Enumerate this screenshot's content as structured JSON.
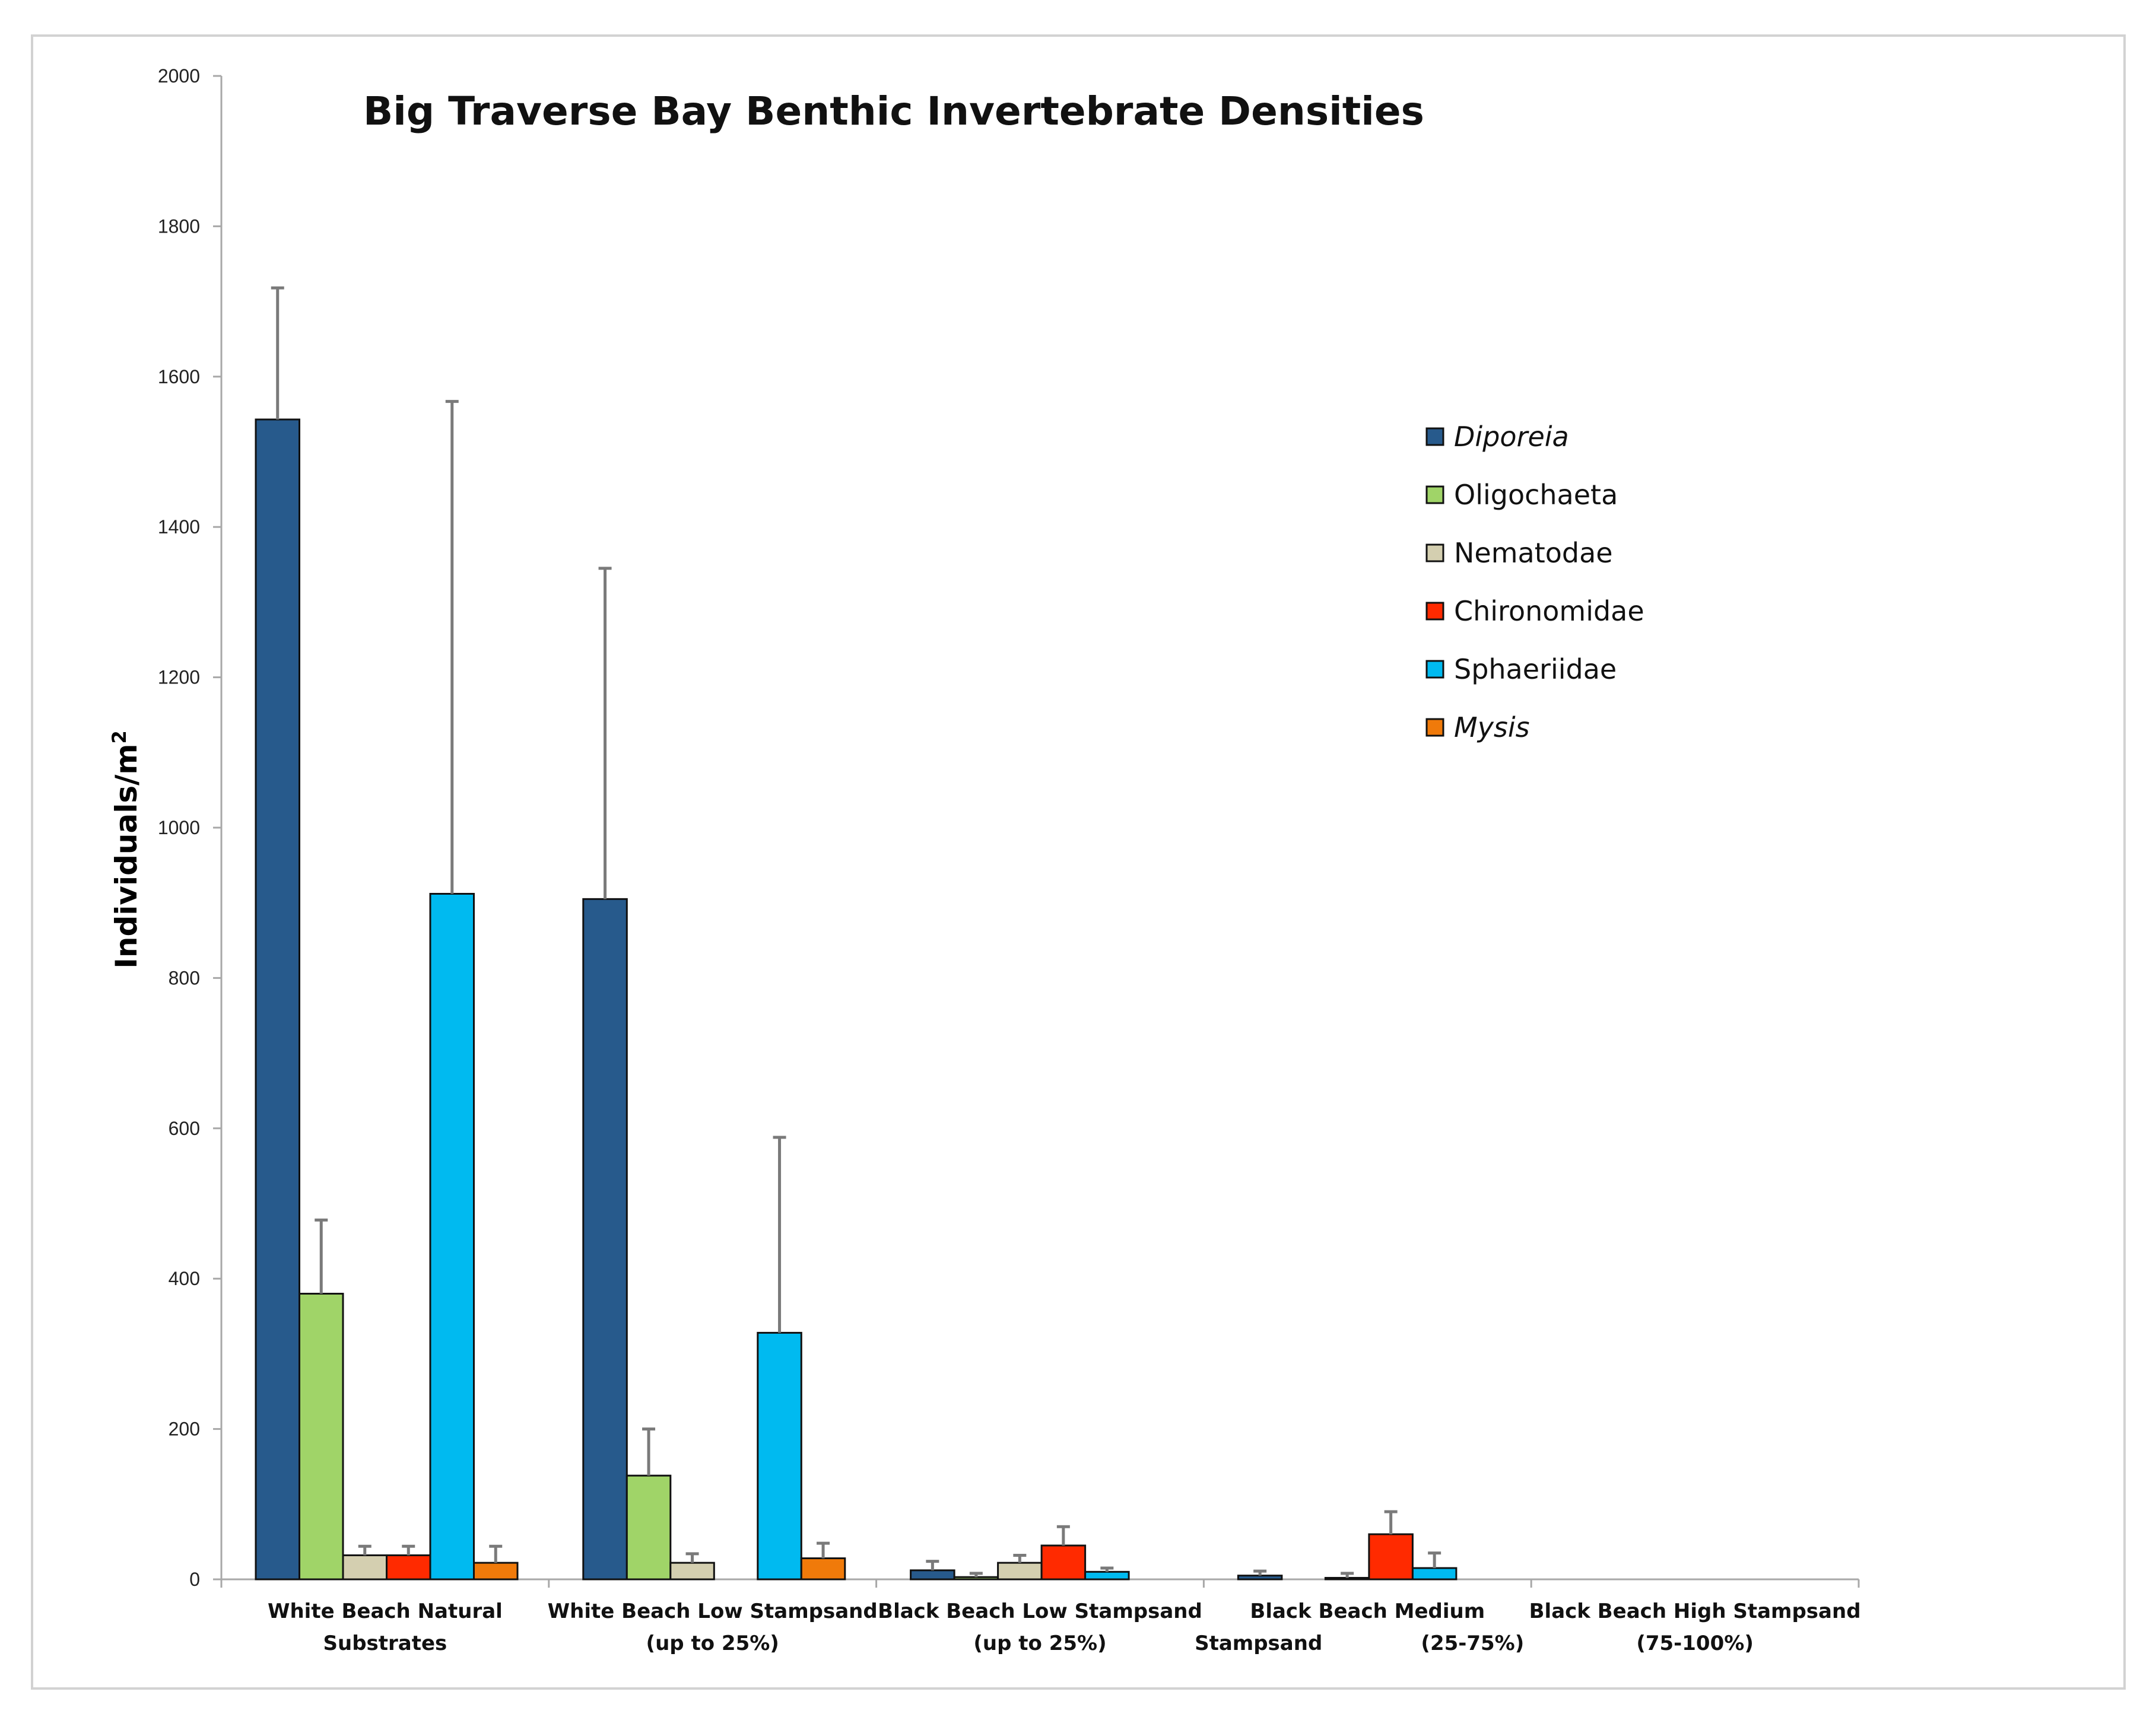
{
  "chart_data": {
    "type": "bar",
    "title": "Big Traverse Bay Benthic Invertebrate Densities",
    "xlabel": "",
    "ylabel": "Individuals/m",
    "ylabel_superscript": "2",
    "ylim": [
      0,
      2000
    ],
    "yticks": [
      "0",
      "200",
      "400",
      "600",
      "800",
      "1000",
      "1200",
      "1400",
      "1600",
      "1800",
      "2000"
    ],
    "grid": false,
    "legend_position": "right",
    "categories": [
      [
        "White Beach Natural",
        "Substrates"
      ],
      [
        "White Beach Low Stampsand",
        "(up to 25%)"
      ],
      [
        "Black Beach Low Stampsand",
        "(up to 25%)"
      ],
      [
        "Black Beach Medium",
        "Stampsand",
        "(25-75%)"
      ],
      [
        "Black Beach High Stampsand",
        "(75-100%)"
      ]
    ],
    "series": [
      {
        "name": "Diporeia",
        "italic": true,
        "color": "#275A8C",
        "values": [
          1543,
          905,
          12,
          5,
          0
        ],
        "errors": [
          175,
          440,
          12,
          6,
          0
        ]
      },
      {
        "name": "Oligochaeta",
        "italic": false,
        "color": "#A0D468",
        "values": [
          380,
          138,
          3,
          0,
          0
        ],
        "errors": [
          98,
          62,
          5,
          0,
          0
        ]
      },
      {
        "name": "Nematodae",
        "italic": false,
        "color": "#D4CFB0",
        "values": [
          32,
          22,
          22,
          2,
          0
        ],
        "errors": [
          12,
          12,
          10,
          6,
          0
        ]
      },
      {
        "name": "Chironomidae",
        "italic": false,
        "color": "#FF2A00",
        "values": [
          32,
          0,
          45,
          60,
          0
        ],
        "errors": [
          12,
          0,
          25,
          30,
          0
        ]
      },
      {
        "name": "Sphaeriidae",
        "italic": false,
        "color": "#00BAF0",
        "values": [
          912,
          328,
          10,
          15,
          0
        ],
        "errors": [
          655,
          260,
          5,
          20,
          0
        ]
      },
      {
        "name": "Mysis",
        "italic": true,
        "color": "#F07A0A",
        "values": [
          22,
          28,
          0,
          0,
          0
        ],
        "errors": [
          22,
          20,
          0,
          0,
          0
        ]
      }
    ],
    "colors": {
      "axis": "#A8A8A8",
      "error_bar": "#7A7A7A",
      "bar_outline": "#111111",
      "frame": "#D2D2D2"
    }
  }
}
